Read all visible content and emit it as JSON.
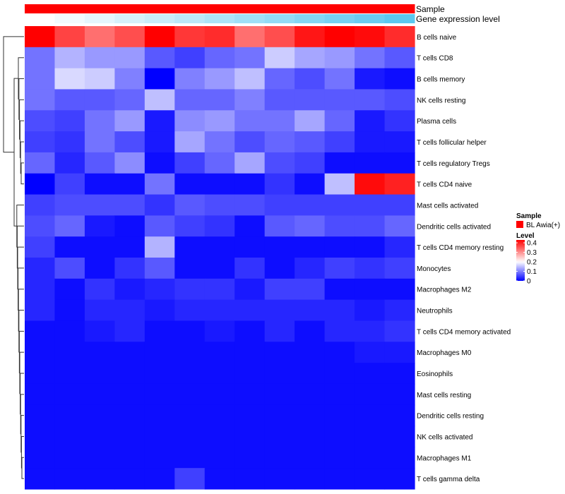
{
  "chart_data": {
    "type": "heatmap",
    "annotation_tracks": [
      {
        "name": "Sample",
        "kind": "categorical"
      },
      {
        "name": "Gene expression level",
        "kind": "gradient",
        "values": [
          0.0,
          0.08,
          0.16,
          0.25,
          0.33,
          0.41,
          0.5,
          0.58,
          0.66,
          0.75,
          0.83,
          0.91,
          1.0
        ]
      }
    ],
    "rows": [
      "B cells naive",
      "T cells CD8",
      "B cells memory",
      "NK cells resting",
      "Plasma cells",
      "T cells follicular helper",
      "T cells regulatory  Tregs",
      "T cells CD4 naive",
      "Mast cells activated",
      "Dendritic cells activated",
      "T cells CD4 memory resting",
      "Monocytes",
      "Macrophages M2",
      "Neutrophils",
      "T cells CD4 memory activated",
      "Macrophages M0",
      "Eosinophils",
      "Mast cells resting",
      "Dendritic cells resting",
      "NK cells activated",
      "Macrophages M1",
      "T cells gamma delta"
    ],
    "values": [
      [
        0.43,
        0.37,
        0.33,
        0.36,
        0.43,
        0.38,
        0.39,
        0.33,
        0.36,
        0.41,
        0.43,
        0.42,
        0.39
      ],
      [
        0.09,
        0.14,
        0.12,
        0.12,
        0.07,
        0.05,
        0.08,
        0.09,
        0.16,
        0.13,
        0.12,
        0.09,
        0.07
      ],
      [
        0.09,
        0.17,
        0.16,
        0.1,
        0.0,
        0.1,
        0.12,
        0.15,
        0.08,
        0.06,
        0.09,
        0.02,
        0.01
      ],
      [
        0.09,
        0.07,
        0.07,
        0.08,
        0.15,
        0.08,
        0.08,
        0.1,
        0.07,
        0.07,
        0.07,
        0.07,
        0.06
      ],
      [
        0.06,
        0.05,
        0.09,
        0.12,
        0.02,
        0.11,
        0.12,
        0.09,
        0.09,
        0.13,
        0.08,
        0.02,
        0.04
      ],
      [
        0.05,
        0.04,
        0.09,
        0.06,
        0.02,
        0.13,
        0.09,
        0.06,
        0.08,
        0.07,
        0.05,
        0.02,
        0.02
      ],
      [
        0.08,
        0.03,
        0.07,
        0.11,
        0.01,
        0.05,
        0.08,
        0.13,
        0.06,
        0.05,
        0.01,
        0.01,
        0.01
      ],
      [
        0.0,
        0.05,
        0.01,
        0.01,
        0.09,
        0.01,
        0.01,
        0.01,
        0.04,
        0.01,
        0.15,
        0.42,
        0.4
      ],
      [
        0.05,
        0.06,
        0.06,
        0.06,
        0.04,
        0.07,
        0.06,
        0.06,
        0.05,
        0.05,
        0.05,
        0.05,
        0.05
      ],
      [
        0.06,
        0.08,
        0.02,
        0.01,
        0.07,
        0.05,
        0.04,
        0.01,
        0.07,
        0.08,
        0.06,
        0.06,
        0.08
      ],
      [
        0.05,
        0.01,
        0.01,
        0.01,
        0.14,
        0.01,
        0.01,
        0.01,
        0.01,
        0.01,
        0.01,
        0.01,
        0.03
      ],
      [
        0.03,
        0.06,
        0.01,
        0.04,
        0.07,
        0.01,
        0.01,
        0.04,
        0.01,
        0.03,
        0.05,
        0.04,
        0.05
      ],
      [
        0.03,
        0.01,
        0.04,
        0.02,
        0.03,
        0.04,
        0.04,
        0.02,
        0.05,
        0.05,
        0.01,
        0.01,
        0.01
      ],
      [
        0.03,
        0.01,
        0.03,
        0.03,
        0.02,
        0.03,
        0.03,
        0.03,
        0.03,
        0.03,
        0.03,
        0.02,
        0.03
      ],
      [
        0.01,
        0.01,
        0.02,
        0.03,
        0.01,
        0.01,
        0.02,
        0.01,
        0.03,
        0.01,
        0.03,
        0.03,
        0.04
      ],
      [
        0.01,
        0.01,
        0.01,
        0.01,
        0.01,
        0.01,
        0.01,
        0.01,
        0.01,
        0.01,
        0.01,
        0.02,
        0.02
      ],
      [
        0.01,
        0.01,
        0.01,
        0.01,
        0.01,
        0.01,
        0.01,
        0.01,
        0.01,
        0.01,
        0.01,
        0.01,
        0.01
      ],
      [
        0.01,
        0.01,
        0.01,
        0.01,
        0.01,
        0.01,
        0.01,
        0.01,
        0.01,
        0.01,
        0.01,
        0.01,
        0.01
      ],
      [
        0.01,
        0.01,
        0.01,
        0.01,
        0.01,
        0.01,
        0.01,
        0.01,
        0.01,
        0.01,
        0.01,
        0.01,
        0.01
      ],
      [
        0.01,
        0.01,
        0.01,
        0.01,
        0.01,
        0.01,
        0.01,
        0.01,
        0.01,
        0.01,
        0.01,
        0.01,
        0.01
      ],
      [
        0.01,
        0.01,
        0.01,
        0.01,
        0.01,
        0.01,
        0.01,
        0.01,
        0.01,
        0.01,
        0.01,
        0.01,
        0.01
      ],
      [
        0.01,
        0.01,
        0.01,
        0.01,
        0.01,
        0.05,
        0.01,
        0.01,
        0.01,
        0.01,
        0.01,
        0.01,
        0.01
      ]
    ],
    "legend": {
      "sample_title": "Sample",
      "sample_entries": [
        {
          "label": "BL Awia(+)",
          "color": "#ff0000"
        }
      ],
      "level_title": "Level",
      "level_ticks": [
        0.4,
        0.3,
        0.2,
        0.1,
        0
      ],
      "level_range": [
        0,
        0.43
      ],
      "placement": "right"
    },
    "colors": {
      "low": "#0000ff",
      "mid": "#ffffff",
      "high": "#ff0000",
      "mid_value": 0.2,
      "sample_bar": "#ff0000",
      "expression_start": "#ffffff",
      "expression_end": "#5bc8f0"
    },
    "dendrogram": {
      "side": "left",
      "shown": true
    },
    "grid": false
  }
}
